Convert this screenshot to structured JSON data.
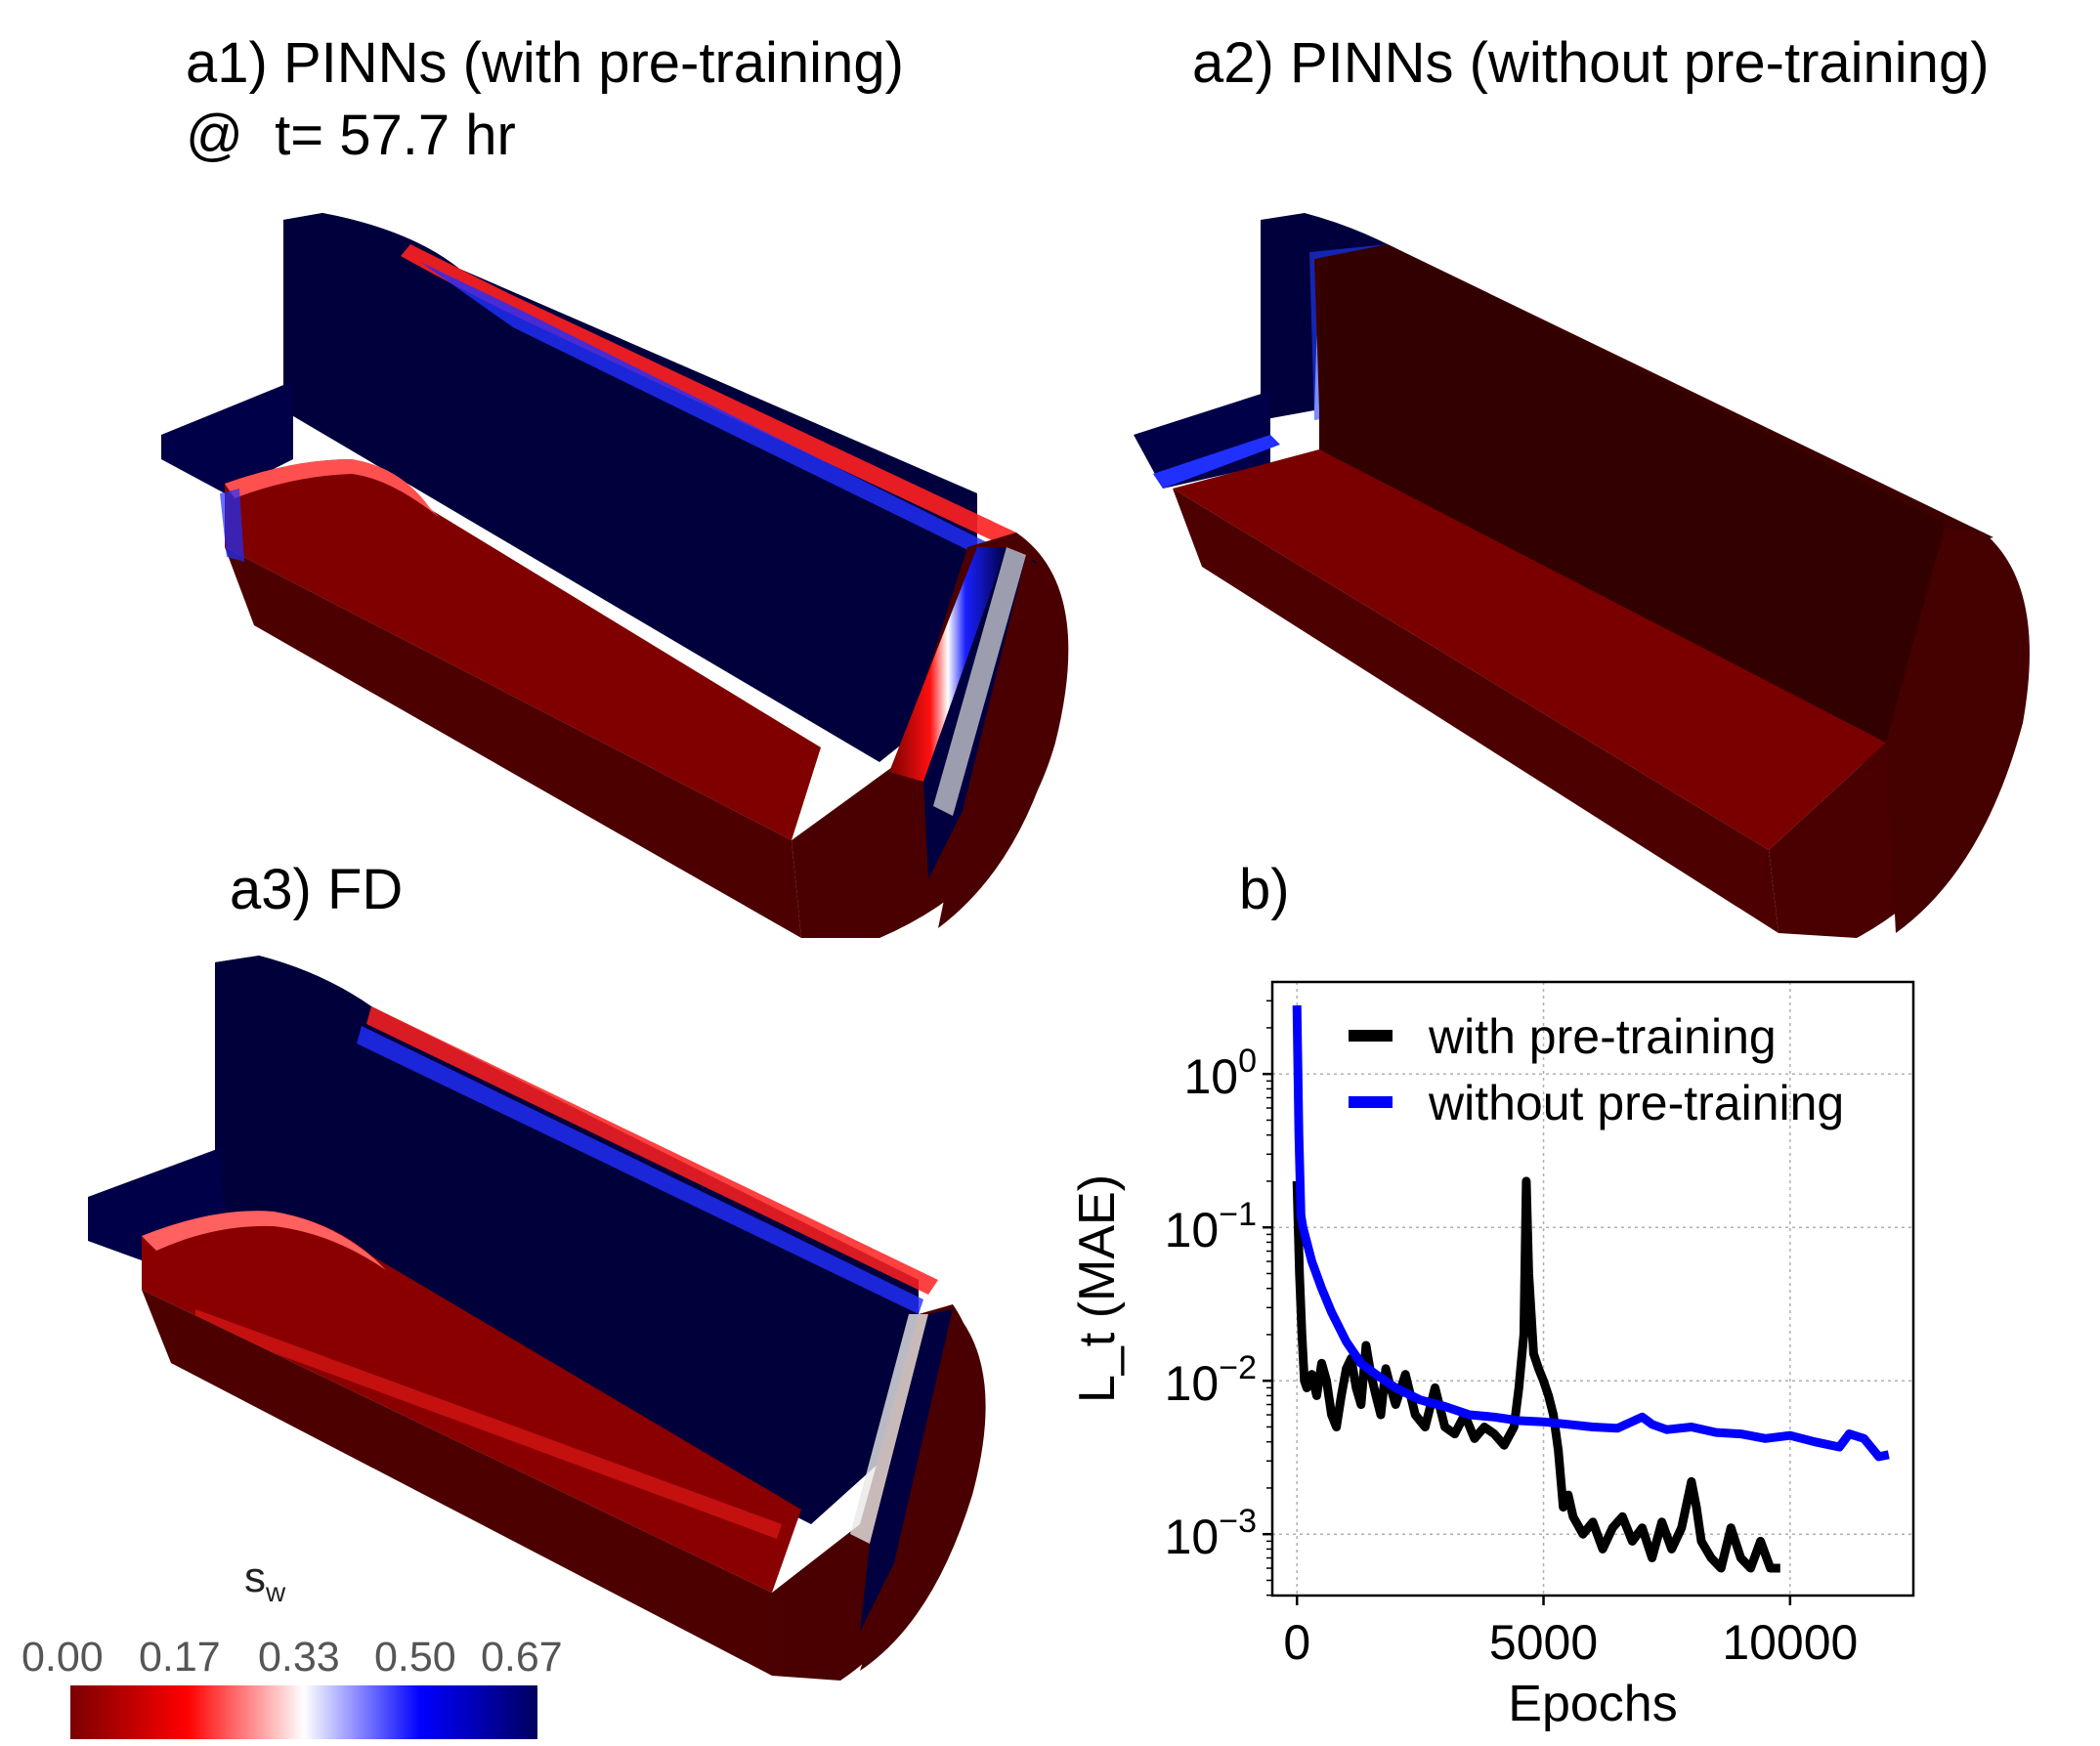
{
  "panels": {
    "a1": {
      "title": "a1) PINNs (with pre-training)",
      "subtitle": "@  t= 57.7 hr"
    },
    "a2": {
      "title": "a2) PINNs (without pre-training)"
    },
    "a3": {
      "title": "a3) FD"
    },
    "b": {
      "title": "b)"
    }
  },
  "colorbar": {
    "label": "s",
    "label_sub": "w",
    "ticks": [
      "0.00",
      "0.17",
      "0.33",
      "0.50",
      "0.67"
    ],
    "colors": [
      "#7a0000",
      "#ff0000",
      "#ffffff",
      "#0000ff",
      "#000060"
    ]
  },
  "colors": {
    "water_red": "#7a0000",
    "water_red_dark": "#4a0000",
    "oil_blue": "#000040",
    "front_red": "#e00000",
    "front_blue": "#1020d0"
  },
  "chart_data": {
    "type": "line",
    "xlabel": "Epochs",
    "ylabel": "L_t (MAE)",
    "yscale": "log",
    "xlim": [
      -500,
      12500
    ],
    "ylim_log10": [
      -3.4,
      0.6
    ],
    "xticks": [
      0,
      5000,
      10000
    ],
    "xtick_labels": [
      "0",
      "5000",
      "10000"
    ],
    "yticks_log10": [
      0,
      -1,
      -2,
      -3
    ],
    "ytick_labels": [
      {
        "base": "10",
        "exp": "0"
      },
      {
        "base": "10",
        "exp": "−1"
      },
      {
        "base": "10",
        "exp": "−2"
      },
      {
        "base": "10",
        "exp": "−3"
      }
    ],
    "grid": true,
    "legend_position": "top-right",
    "series": [
      {
        "name": "with pre-training",
        "color": "#000000",
        "x": [
          0,
          50,
          100,
          150,
          200,
          300,
          400,
          500,
          600,
          700,
          800,
          900,
          1000,
          1100,
          1200,
          1300,
          1400,
          1500,
          1600,
          1700,
          1800,
          1900,
          2000,
          2200,
          2400,
          2600,
          2800,
          3000,
          3200,
          3400,
          3600,
          3800,
          4000,
          4200,
          4400,
          4500,
          4600,
          4650,
          4700,
          4800,
          4900,
          5000,
          5100,
          5200,
          5300,
          5400,
          5500,
          5600,
          5800,
          6000,
          6200,
          6400,
          6600,
          6800,
          7000,
          7200,
          7400,
          7600,
          7800,
          8000,
          8100,
          8200,
          8400,
          8600,
          8800,
          9000,
          9200,
          9400,
          9600,
          9800
        ],
        "y": [
          0.2,
          0.05,
          0.02,
          0.01,
          0.009,
          0.011,
          0.008,
          0.013,
          0.01,
          0.006,
          0.005,
          0.008,
          0.012,
          0.014,
          0.009,
          0.007,
          0.017,
          0.011,
          0.008,
          0.006,
          0.012,
          0.009,
          0.007,
          0.011,
          0.006,
          0.005,
          0.009,
          0.005,
          0.0045,
          0.006,
          0.0042,
          0.005,
          0.0045,
          0.0038,
          0.005,
          0.009,
          0.02,
          0.2,
          0.05,
          0.015,
          0.012,
          0.01,
          0.008,
          0.006,
          0.0035,
          0.0015,
          0.0018,
          0.0013,
          0.001,
          0.0012,
          0.0008,
          0.0011,
          0.0013,
          0.0009,
          0.0011,
          0.0007,
          0.0012,
          0.0008,
          0.0011,
          0.0022,
          0.0015,
          0.0009,
          0.0007,
          0.0006,
          0.0011,
          0.0007,
          0.0006,
          0.0009,
          0.0006,
          0.0006
        ]
      },
      {
        "name": "without pre-training",
        "color": "#0000ff",
        "x": [
          0,
          40,
          80,
          120,
          200,
          300,
          500,
          700,
          1000,
          1300,
          1600,
          2000,
          2500,
          3000,
          3500,
          4000,
          4500,
          5000,
          5500,
          6000,
          6500,
          7000,
          7200,
          7500,
          8000,
          8500,
          9000,
          9500,
          10000,
          10500,
          11000,
          11200,
          11500,
          11800,
          12000
        ],
        "y": [
          2.8,
          0.4,
          0.12,
          0.1,
          0.08,
          0.06,
          0.04,
          0.028,
          0.018,
          0.013,
          0.011,
          0.009,
          0.0075,
          0.0068,
          0.006,
          0.0058,
          0.0055,
          0.0054,
          0.0052,
          0.005,
          0.0049,
          0.0058,
          0.0052,
          0.0048,
          0.005,
          0.0046,
          0.0045,
          0.0042,
          0.0044,
          0.004,
          0.0037,
          0.0045,
          0.0042,
          0.0032,
          0.0033
        ]
      }
    ]
  }
}
